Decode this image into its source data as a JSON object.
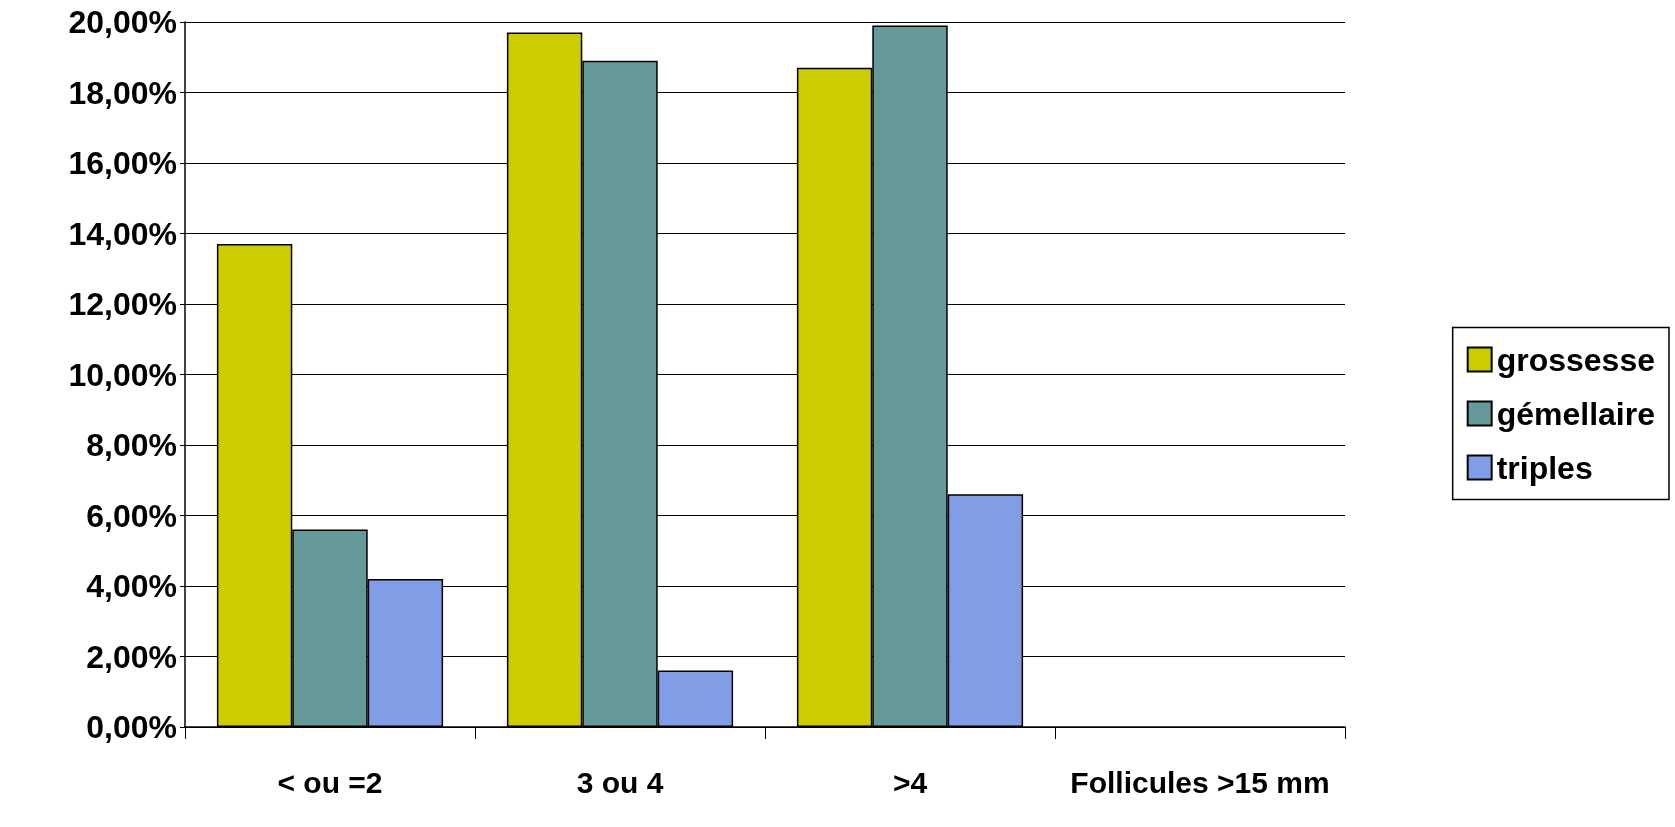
{
  "chart_data": {
    "type": "bar",
    "categories": [
      "< ou =2",
      "3 ou 4",
      ">4",
      "Follicules >15 mm"
    ],
    "series": [
      {
        "name": "grossesse",
        "color": "#cccc00",
        "values": [
          13.7,
          19.7,
          18.7,
          null
        ]
      },
      {
        "name": "gémellaire",
        "color": "#669999",
        "values": [
          5.6,
          18.9,
          19.9,
          null
        ]
      },
      {
        "name": "triples",
        "color": "#809de6",
        "values": [
          4.2,
          1.6,
          6.6,
          null
        ]
      }
    ],
    "ylim": [
      0,
      20
    ],
    "yticks": [
      {
        "value": 0,
        "label": "0,00%"
      },
      {
        "value": 2,
        "label": "2,00%"
      },
      {
        "value": 4,
        "label": "4,00%"
      },
      {
        "value": 6,
        "label": "6,00%"
      },
      {
        "value": 8,
        "label": "8,00%"
      },
      {
        "value": 10,
        "label": "10,00%"
      },
      {
        "value": 12,
        "label": "12,00%"
      },
      {
        "value": 14,
        "label": "14,00%"
      },
      {
        "value": 16,
        "label": "16,00%"
      },
      {
        "value": 18,
        "label": "18,00%"
      },
      {
        "value": 20,
        "label": "20,00%"
      }
    ],
    "grid": "y",
    "legend": "right"
  }
}
